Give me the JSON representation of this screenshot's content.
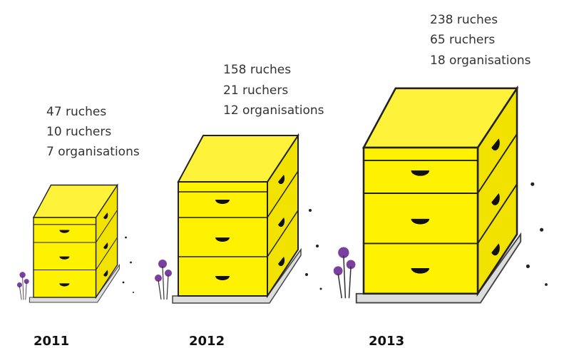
{
  "groups": [
    {
      "year": "2011",
      "lines": [
        "47 ruches",
        "10 ruchers",
        "7 organisations"
      ]
    },
    {
      "year": "2012",
      "lines": [
        "158 ruches",
        "21 ruchers",
        "12 organisations"
      ]
    },
    {
      "year": "2013",
      "lines": [
        "238 ruches",
        "65 ruchers",
        "18 organisations"
      ]
    }
  ]
}
